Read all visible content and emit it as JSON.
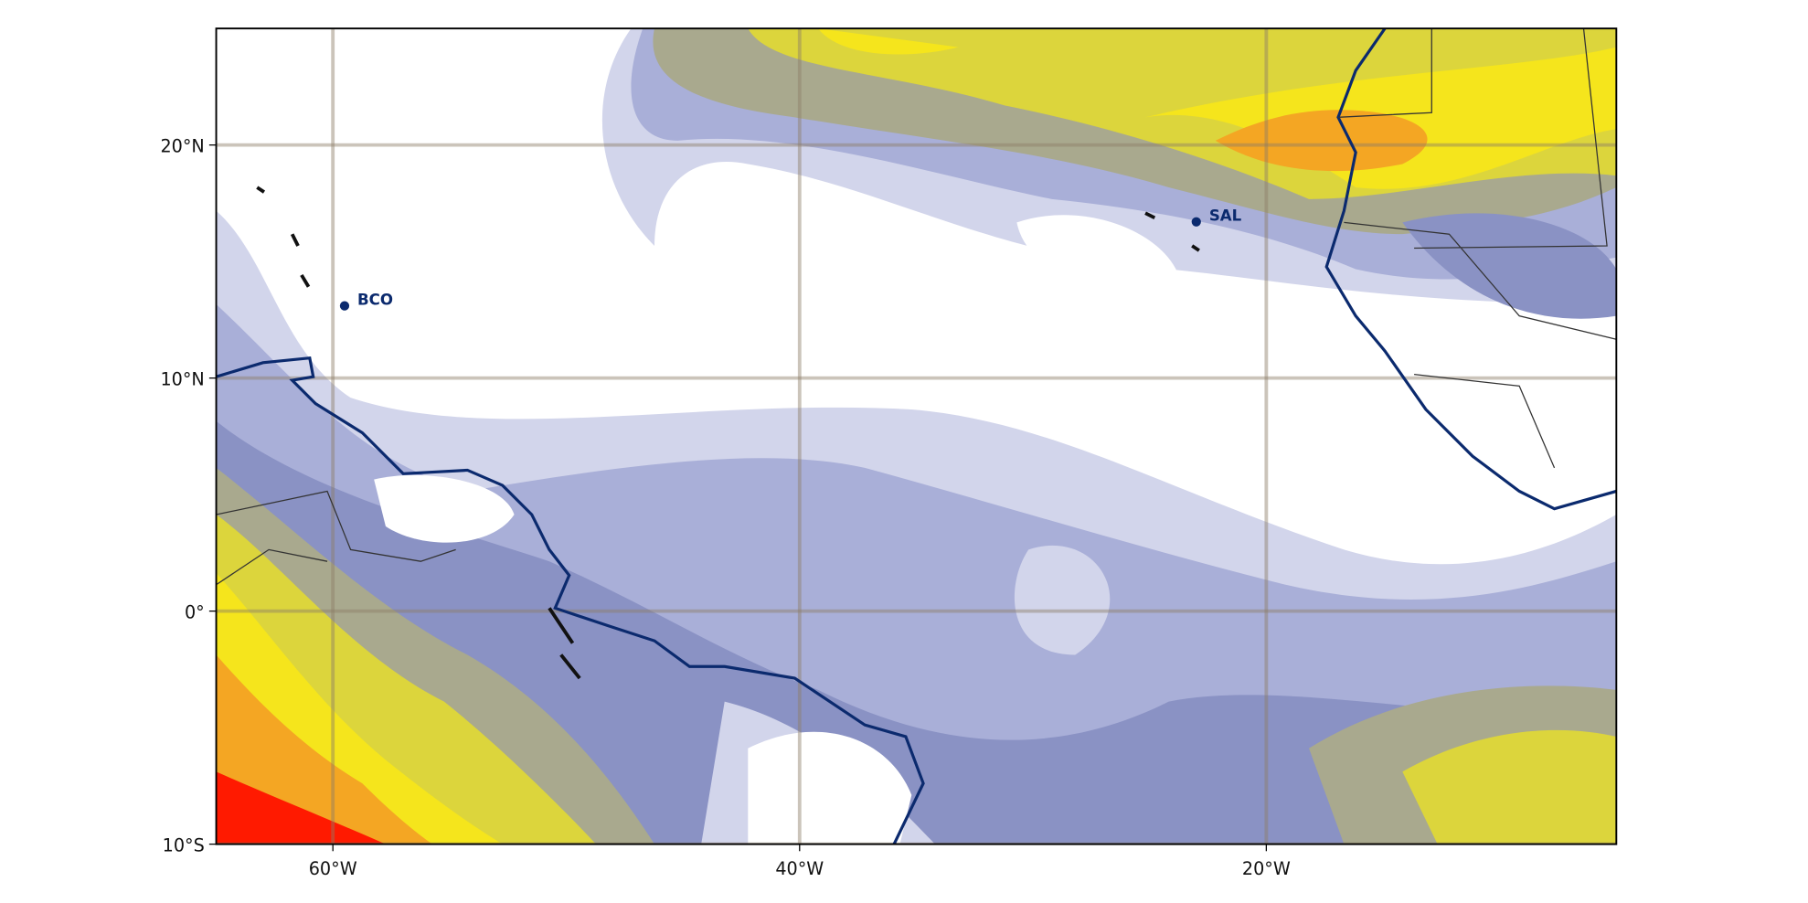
{
  "map": {
    "lon_lim": [
      -65,
      -5
    ],
    "lat_lim": [
      -10,
      25
    ],
    "lon_ticks": [
      {
        "value": -60,
        "label": "60°W"
      },
      {
        "value": -40,
        "label": "40°W"
      },
      {
        "value": -20,
        "label": "20°W"
      }
    ],
    "lat_ticks": [
      {
        "value": -10,
        "label": "10°S"
      },
      {
        "value": 0,
        "label": "0°"
      },
      {
        "value": 10,
        "label": "10°N"
      },
      {
        "value": 20,
        "label": "20°N"
      }
    ],
    "grid": true,
    "stations": [
      {
        "name": "BCO",
        "lon": -59.5,
        "lat": 13.1
      },
      {
        "name": "SAL",
        "lon": -23.0,
        "lat": 16.7
      }
    ]
  }
}
